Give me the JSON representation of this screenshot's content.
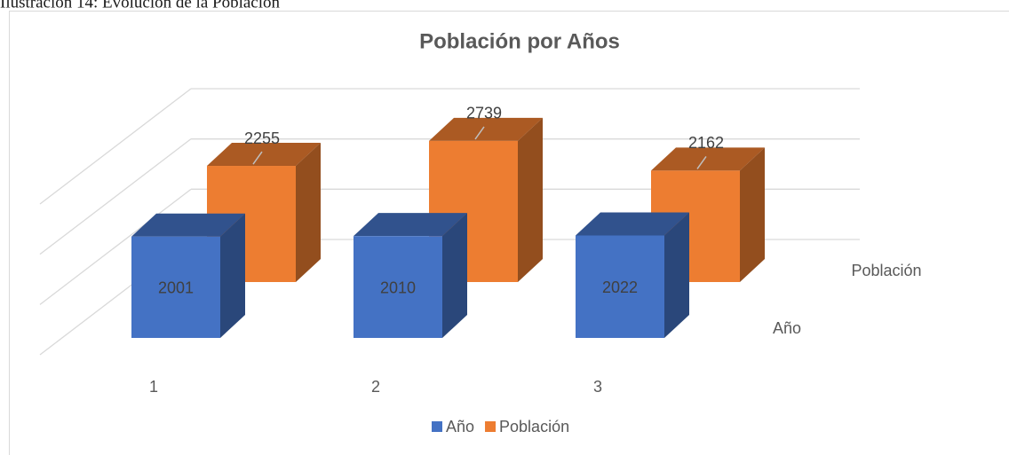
{
  "caption": "Ilustración 14: Evolución de la Población",
  "chart_data": {
    "type": "bar3d",
    "title": "Población por Años",
    "categories": [
      "1",
      "2",
      "3"
    ],
    "series": [
      {
        "name": "Año",
        "color": "#4472c4",
        "values": [
          2001,
          2010,
          2022
        ]
      },
      {
        "name": "Población",
        "color": "#ed7d31",
        "values": [
          2255,
          2739,
          2162
        ]
      }
    ],
    "ylim": [
      0,
      3000
    ],
    "yticks": [
      0,
      1000,
      2000,
      3000
    ],
    "grid": true,
    "legend": "bottom"
  }
}
